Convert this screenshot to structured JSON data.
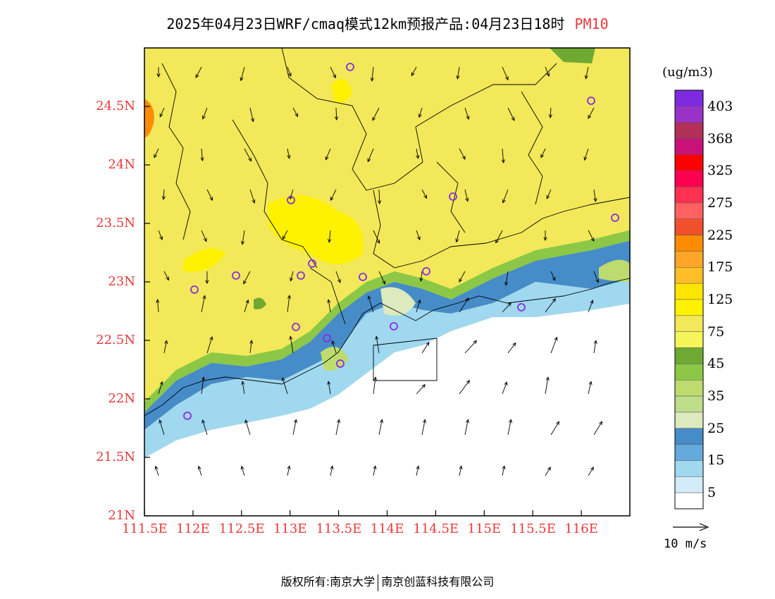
{
  "title": {
    "main": "2025年04月23日WRF/cmaq模式12km预报产品:04月23日18时",
    "pollutant": "PM10"
  },
  "map": {
    "lat_labels": [
      {
        "value": 24.5,
        "text": "24.5N"
      },
      {
        "value": 24.0,
        "text": "24N"
      },
      {
        "value": 23.5,
        "text": "23.5N"
      },
      {
        "value": 23.0,
        "text": "23N"
      },
      {
        "value": 22.5,
        "text": "22.5N"
      },
      {
        "value": 22.0,
        "text": "22N"
      },
      {
        "value": 21.5,
        "text": "21.5N"
      },
      {
        "value": 21.0,
        "text": "21N"
      }
    ],
    "lon_labels": [
      {
        "value": 111.5,
        "text": "111.5E"
      },
      {
        "value": 112.0,
        "text": "112E"
      },
      {
        "value": 112.5,
        "text": "112.5E"
      },
      {
        "value": 113.0,
        "text": "113E"
      },
      {
        "value": 113.5,
        "text": "113.5E"
      },
      {
        "value": 114.0,
        "text": "114E"
      },
      {
        "value": 114.5,
        "text": "114.5E"
      },
      {
        "value": 115.0,
        "text": "115E"
      },
      {
        "value": 115.5,
        "text": "115.5E"
      },
      {
        "value": 116.0,
        "text": "116E"
      }
    ],
    "lat_range": [
      21.0,
      25.0
    ],
    "lon_range": [
      111.5,
      116.5
    ]
  },
  "colorbar": {
    "unit": "(ug/m3)",
    "labels": [
      "403",
      "368",
      "325",
      "275",
      "225",
      "175",
      "125",
      "75",
      "45",
      "35",
      "25",
      "15",
      "5"
    ],
    "colors": [
      "#7d2ae0",
      "#9b32c8",
      "#b0305a",
      "#c8127a",
      "#ff0000",
      "#ff0050",
      "#ff3050",
      "#ff6060",
      "#f0502a",
      "#ff8c00",
      "#ffa528",
      "#ffbe28",
      "#ffe600",
      "#fff200",
      "#f2e85a",
      "#f5f55a",
      "#6eaa32",
      "#8cc846",
      "#bedc6e",
      "#bede8c",
      "#dceabe",
      "#468cc8",
      "#64aadc",
      "#a0d8f0",
      "#d2ecf8",
      "#ffffff"
    ]
  },
  "wind": {
    "reference_label": "10 m/s"
  },
  "footer": {
    "left": "版权所有:南京大学",
    "right": "南京创蓝科技有限公司"
  }
}
